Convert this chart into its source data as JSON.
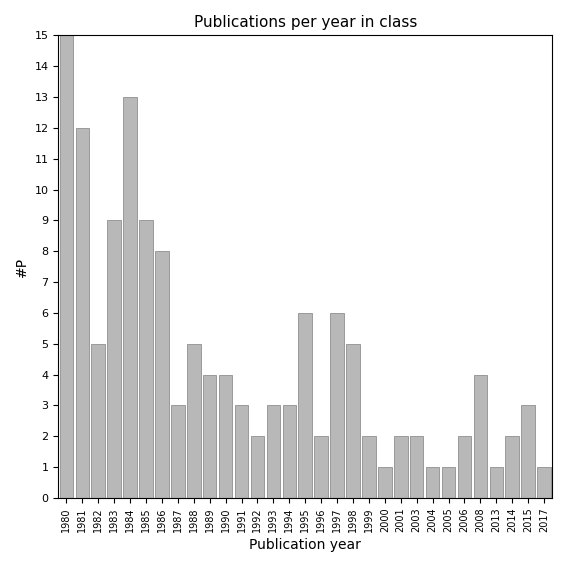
{
  "title": "Publications per year in class",
  "xlabel": "Publication year",
  "ylabel": "#P",
  "bar_color": "#b8b8b8",
  "bar_edge_color": "#808080",
  "background_color": "#ffffff",
  "ylim": [
    0,
    15
  ],
  "yticks": [
    0,
    1,
    2,
    3,
    4,
    5,
    6,
    7,
    8,
    9,
    10,
    11,
    12,
    13,
    14,
    15
  ],
  "categories": [
    "1980",
    "1981",
    "1982",
    "1983",
    "1984",
    "1985",
    "1986",
    "1987",
    "1988",
    "1989",
    "1990",
    "1991",
    "1992",
    "1993",
    "1994",
    "1995",
    "1996",
    "1997",
    "1998",
    "1999",
    "2000",
    "2001",
    "2003",
    "2004",
    "2005",
    "2006",
    "2008",
    "2013",
    "2014",
    "2015",
    "2017"
  ],
  "values": [
    15,
    12,
    5,
    9,
    13,
    9,
    8,
    3,
    5,
    4,
    4,
    3,
    2,
    3,
    3,
    6,
    2,
    6,
    5,
    2,
    1,
    2,
    2,
    1,
    1,
    2,
    4,
    1,
    2,
    3,
    1
  ]
}
